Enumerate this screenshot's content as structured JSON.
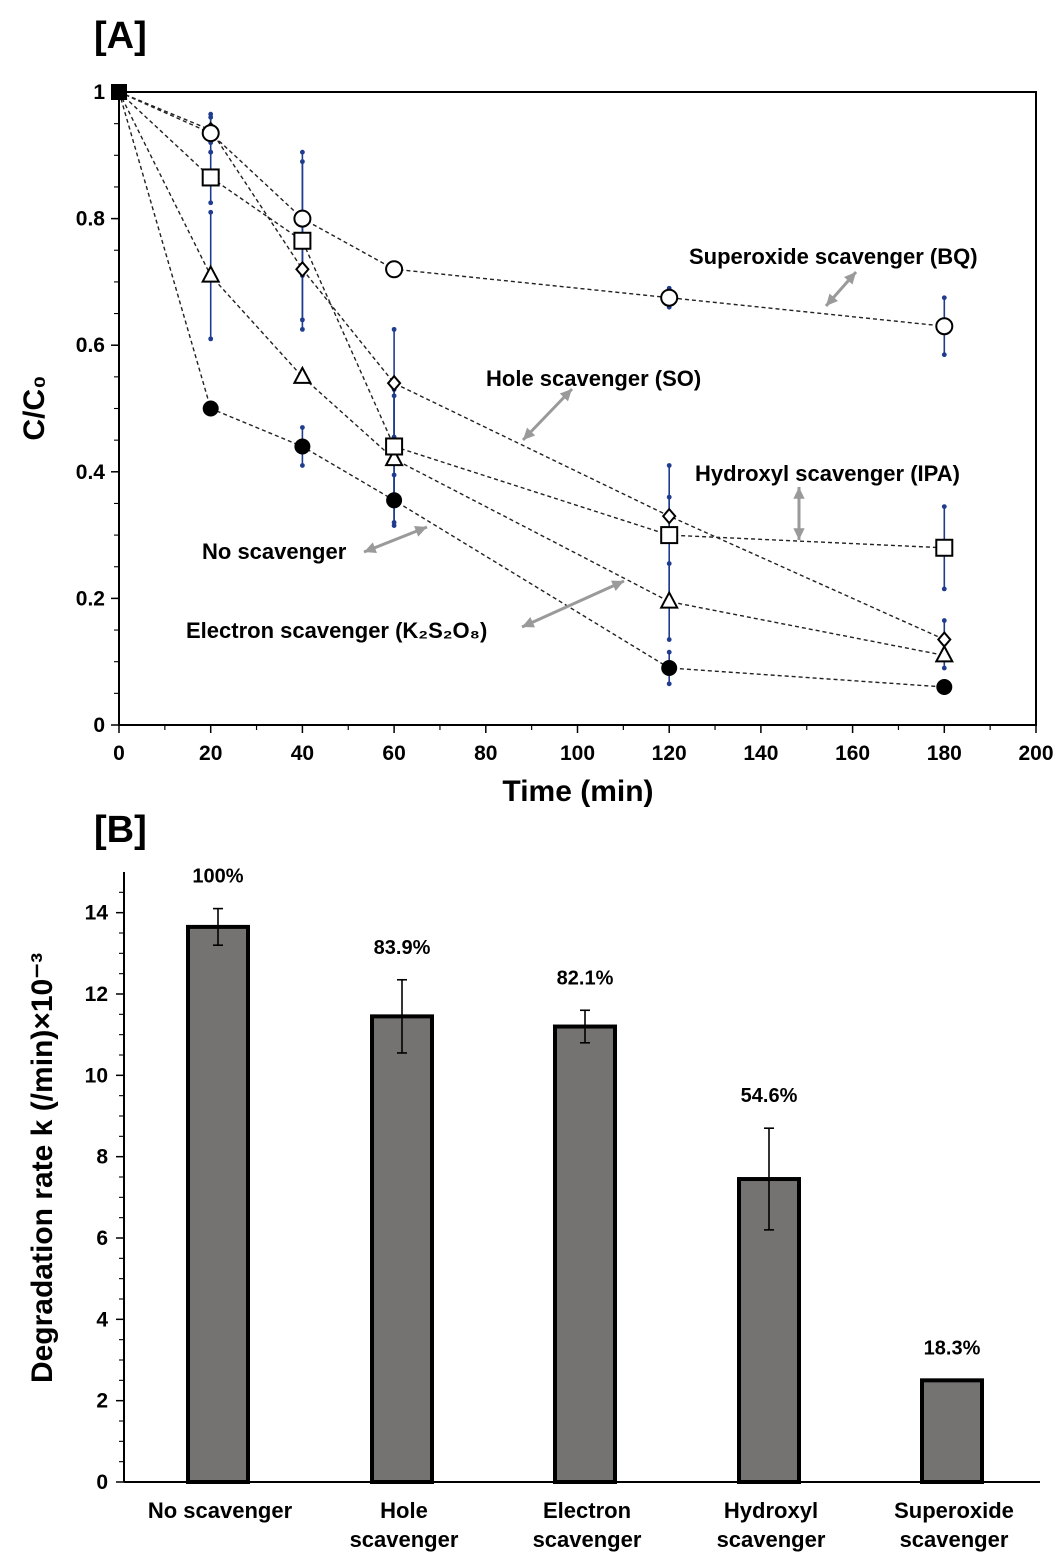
{
  "chart_data": [
    {
      "panel": "[A]",
      "type": "line",
      "xlabel": "Time (min)",
      "ylabel": "C/C₀",
      "xlim": [
        0,
        200
      ],
      "ylim": [
        0,
        1
      ],
      "xticks": [
        0,
        20,
        40,
        60,
        80,
        100,
        120,
        140,
        160,
        180,
        200
      ],
      "yticks": [
        0,
        0.2,
        0.4,
        0.6,
        0.8,
        1
      ],
      "ytick_labels": [
        "0",
        "0.2",
        "0.4",
        "0.6",
        "0.8",
        "1"
      ],
      "grid": false,
      "series": [
        {
          "name": "No scavenger",
          "marker": "filled-circle",
          "x": [
            0,
            20,
            40,
            60,
            120,
            180
          ],
          "y": [
            1,
            0.5,
            0.44,
            0.355,
            0.09,
            0.06
          ],
          "err": [
            0,
            0,
            0.03,
            0.04,
            0.025,
            0
          ]
        },
        {
          "name": "Hole scavenger (SO)",
          "marker": "diamond",
          "x": [
            0,
            20,
            40,
            60,
            120,
            180
          ],
          "y": [
            1,
            0.94,
            0.72,
            0.54,
            0.33,
            0.135
          ],
          "err": [
            0,
            0.02,
            0.08,
            0.085,
            0.03,
            0.03
          ]
        },
        {
          "name": "Electron scavenger (K₂S₂O₈)",
          "marker": "triangle",
          "x": [
            0,
            20,
            40,
            60,
            120,
            180
          ],
          "y": [
            1,
            0.71,
            0.55,
            0.42,
            0.195,
            0.11
          ],
          "err": [
            0,
            0.1,
            0,
            0.1,
            0.06,
            0.02
          ]
        },
        {
          "name": "Hydroxyl scavenger (IPA)",
          "marker": "square",
          "x": [
            0,
            20,
            40,
            60,
            120,
            180
          ],
          "y": [
            1,
            0.865,
            0.765,
            0.44,
            0.3,
            0.28
          ],
          "err": [
            0,
            0.04,
            0.14,
            0.09,
            0.11,
            0.065
          ]
        },
        {
          "name": "Superoxide scavenger (BQ)",
          "marker": "circle",
          "x": [
            0,
            20,
            40,
            60,
            120,
            180
          ],
          "y": [
            1,
            0.935,
            0.8,
            0.72,
            0.675,
            0.63
          ],
          "err": [
            0,
            0.03,
            0.09,
            0,
            0.015,
            0.045
          ]
        }
      ],
      "annotations": [
        {
          "text": "Superoxide scavenger (BQ)"
        },
        {
          "text": "Hole scavenger (SO)"
        },
        {
          "text": "Hydroxyl scavenger (IPA)"
        },
        {
          "text": "No scavenger"
        },
        {
          "text": "Electron scavenger (K₂S₂O₈)"
        }
      ]
    },
    {
      "panel": "[B]",
      "type": "bar",
      "ylabel": "Degradation rate k (/min)×10⁻³",
      "ylim": [
        0,
        15
      ],
      "yticks": [
        0,
        2,
        4,
        6,
        8,
        10,
        12,
        14
      ],
      "grid": false,
      "categories": [
        [
          "No scavenger"
        ],
        [
          "Hole",
          "scavenger"
        ],
        [
          "Electron",
          "scavenger"
        ],
        [
          "Hydroxyl",
          "scavenger"
        ],
        [
          "Superoxide",
          "scavenger"
        ]
      ],
      "values": [
        13.65,
        11.45,
        11.2,
        7.45,
        2.5
      ],
      "errors": [
        0.45,
        0.9,
        0.4,
        1.25,
        0
      ],
      "data_labels": [
        "100%",
        "83.9%",
        "82.1%",
        "54.6%",
        "18.3%"
      ],
      "bar_color": "#757272"
    }
  ]
}
